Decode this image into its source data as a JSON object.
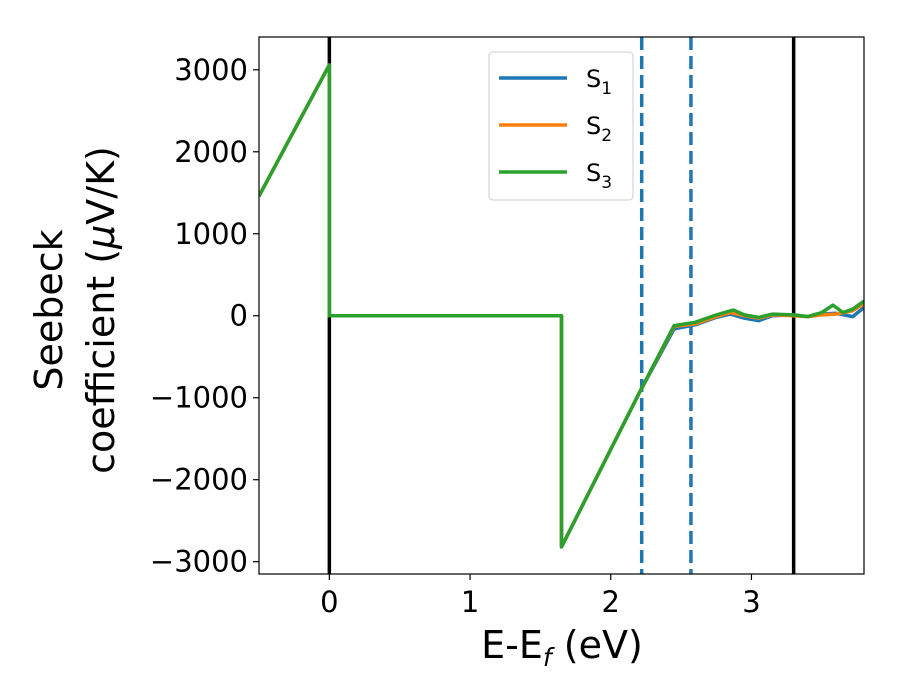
{
  "chart_data": {
    "type": "line",
    "xlabel": {
      "main": "E-E",
      "sub": "f",
      "unit": " (eV)"
    },
    "ylabel": {
      "line1": "Seebeck",
      "line2": "coefficient  (",
      "mu": "μ",
      "unit": "V/K)"
    },
    "xlim": [
      -0.5,
      3.8
    ],
    "ylim": [
      -3150,
      3400
    ],
    "xticks": [
      0,
      1,
      2,
      3
    ],
    "yticks": [
      3000,
      2000,
      1000,
      0,
      -1000,
      -2000,
      -3000
    ],
    "ytick_labels": [
      "3000",
      "2000",
      "1000",
      "0",
      "−1000",
      "−2000",
      "−3000"
    ],
    "grid": false,
    "legend": {
      "placement": "top-center"
    },
    "series": [
      {
        "name": "S",
        "sub": "1",
        "color": "#1f77b4",
        "points": [
          [
            -0.5,
            1460
          ],
          [
            0,
            3060
          ],
          [
            0,
            0
          ],
          [
            1.65,
            0
          ],
          [
            1.65,
            -2820
          ],
          [
            2.2,
            -950
          ],
          [
            2.45,
            -160
          ],
          [
            2.6,
            -110
          ],
          [
            2.75,
            -20
          ],
          [
            2.85,
            20
          ],
          [
            2.95,
            -30
          ],
          [
            3.05,
            -60
          ],
          [
            3.15,
            0
          ],
          [
            3.3,
            10
          ],
          [
            3.4,
            -10
          ],
          [
            3.5,
            20
          ],
          [
            3.6,
            30
          ],
          [
            3.72,
            -10
          ],
          [
            3.8,
            100
          ]
        ]
      },
      {
        "name": "S",
        "sub": "2",
        "color": "#ff7f0e",
        "points": [
          [
            -0.5,
            1460
          ],
          [
            0,
            3060
          ],
          [
            0,
            0
          ],
          [
            1.65,
            0
          ],
          [
            1.65,
            -2820
          ],
          [
            2.2,
            -950
          ],
          [
            2.45,
            -130
          ],
          [
            2.6,
            -100
          ],
          [
            2.75,
            -10
          ],
          [
            2.85,
            40
          ],
          [
            2.95,
            0
          ],
          [
            3.05,
            -30
          ],
          [
            3.15,
            10
          ],
          [
            3.3,
            0
          ],
          [
            3.4,
            -10
          ],
          [
            3.5,
            10
          ],
          [
            3.6,
            20
          ],
          [
            3.72,
            60
          ],
          [
            3.8,
            150
          ]
        ]
      },
      {
        "name": "S",
        "sub": "3",
        "color": "#2ca02c",
        "points": [
          [
            -0.5,
            1460
          ],
          [
            0,
            3060
          ],
          [
            0,
            0
          ],
          [
            1.65,
            0
          ],
          [
            1.65,
            -2820
          ],
          [
            2.2,
            -950
          ],
          [
            2.45,
            -120
          ],
          [
            2.6,
            -80
          ],
          [
            2.75,
            10
          ],
          [
            2.87,
            70
          ],
          [
            2.95,
            10
          ],
          [
            3.05,
            -20
          ],
          [
            3.15,
            20
          ],
          [
            3.3,
            10
          ],
          [
            3.4,
            -10
          ],
          [
            3.5,
            40
          ],
          [
            3.58,
            130
          ],
          [
            3.65,
            40
          ],
          [
            3.72,
            80
          ],
          [
            3.8,
            180
          ]
        ]
      }
    ],
    "vlines": [
      {
        "x": 0,
        "style": "solid",
        "color": "#000000"
      },
      {
        "x": 3.3,
        "style": "solid",
        "color": "#000000"
      },
      {
        "x": 2.22,
        "style": "dashed",
        "color": "#1f77b4"
      },
      {
        "x": 2.57,
        "style": "dashed",
        "color": "#1f77b4"
      }
    ]
  }
}
